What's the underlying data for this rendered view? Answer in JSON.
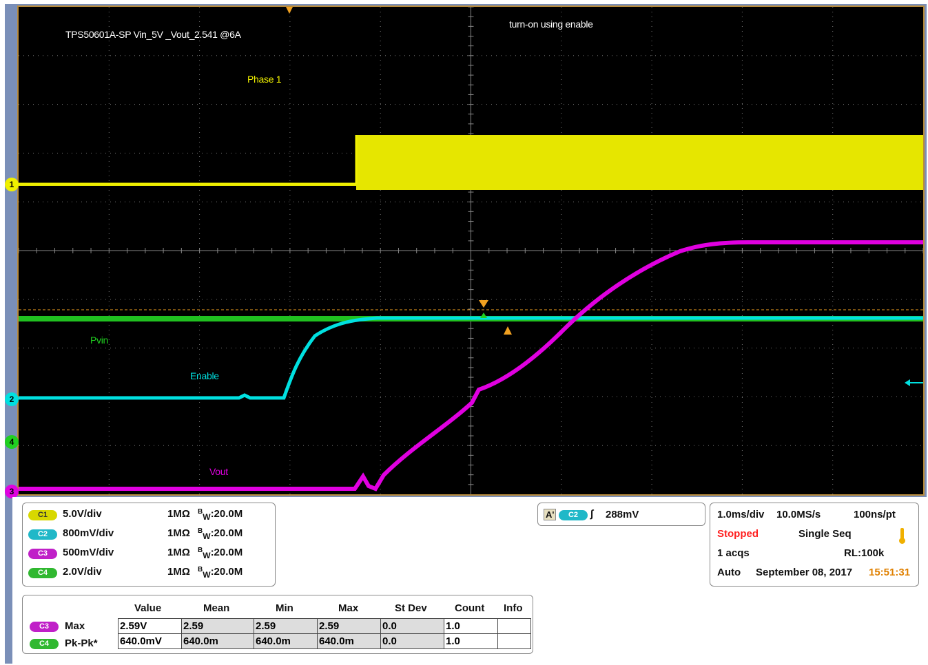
{
  "annotations": {
    "title": "TPS50601A-SP  Vin_5V _Vout_2.541 @6A",
    "note": "turn-on using enable",
    "phase": "Phase 1",
    "pvin": "Pvin",
    "enable": "Enable",
    "vout": "Vout"
  },
  "channel_markers": [
    "1",
    "2",
    "4",
    "3"
  ],
  "channels": [
    {
      "badge": "C1",
      "scale": "5.0V/div",
      "impedance": "1MΩ",
      "bw_prefix": "B",
      "bw_sub": "W",
      "bw": ":20.0M",
      "color": "#f0f000"
    },
    {
      "badge": "C2",
      "scale": "800mV/div",
      "impedance": "1MΩ",
      "bw_prefix": "B",
      "bw_sub": "W",
      "bw": ":20.0M",
      "color": "#00e0e0"
    },
    {
      "badge": "C3",
      "scale": "500mV/div",
      "impedance": "1MΩ",
      "bw_prefix": "B",
      "bw_sub": "W",
      "bw": ":20.0M",
      "color": "#e000e0"
    },
    {
      "badge": "C4",
      "scale": "2.0V/div",
      "impedance": "1MΩ",
      "bw_prefix": "B",
      "bw_sub": "W",
      "bw": ":20.0M",
      "color": "#20d020"
    }
  ],
  "trigger": {
    "mode": "A'",
    "source": "C2",
    "level": "288mV"
  },
  "acquisition": {
    "timebase": "1.0ms/div",
    "sample_rate": "10.0MS/s",
    "resolution": "100ns/pt",
    "state": "Stopped",
    "sequence": "Single Seq",
    "acqs": "1 acqs",
    "record_length": "RL:100k",
    "trigger_mode": "Auto",
    "date": "September 08, 2017",
    "time": "15:51:31"
  },
  "measurements": {
    "headers": [
      "Value",
      "Mean",
      "Min",
      "Max",
      "St Dev",
      "Count",
      "Info"
    ],
    "rows": [
      {
        "badge": "C3",
        "name": "Max",
        "cells": [
          "2.59V",
          "2.59",
          "2.59",
          "2.59",
          "0.0",
          "1.0",
          ""
        ]
      },
      {
        "badge": "C4",
        "name": "Pk-Pk*",
        "cells": [
          "640.0mV",
          "640.0m",
          "640.0m",
          "640.0m",
          "0.0",
          "1.0",
          ""
        ]
      }
    ]
  },
  "colors": {
    "ch1": "#f0f000",
    "ch2": "#00e0e0",
    "ch3": "#e000e0",
    "ch4": "#20d020",
    "trigger": "#f0a020"
  }
}
